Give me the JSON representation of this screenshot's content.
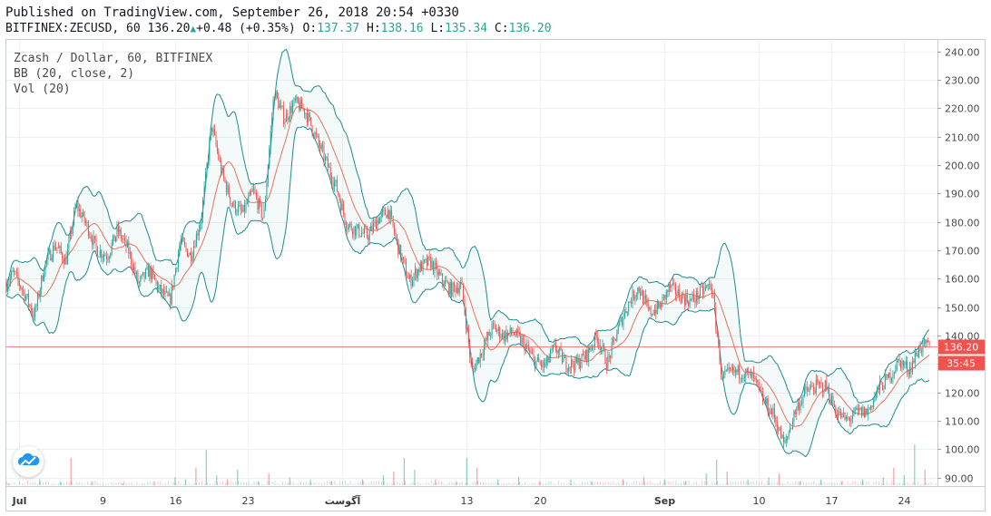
{
  "header": {
    "published": "Published on TradingView.com, September 26, 2018 20:54 +0330",
    "symbol": "BITFINEX:ZECUSD, 60",
    "last": "136.20",
    "change": "+0.48 (+0.35%)",
    "o_label": "O:",
    "o_value": "137.37",
    "h_label": "H:",
    "h_value": "138.16",
    "l_label": "L:",
    "l_value": "135.34",
    "c_label": "C:",
    "c_value": "136.20"
  },
  "legend": {
    "title": "Zcash / Dollar, 60, BITFINEX",
    "bb": "BB (20, close, 2)",
    "vol": "Vol (20)"
  },
  "colors": {
    "up": "#26a69a",
    "down": "#ef5350",
    "band": "#1e8a93",
    "basis": "#e8735d",
    "grid": "#eef0f3",
    "price_line": "#ef5350"
  },
  "icons": {
    "logo": "tradingview-cloud-logo"
  },
  "chart_data": {
    "type": "candlestick",
    "title": "Zcash / Dollar, 60, BITFINEX",
    "indicators": [
      "BB (20, close, 2)",
      "Vol (20)"
    ],
    "y_axis_ticks": [
      "240.00",
      "230.00",
      "220.00",
      "210.00",
      "200.00",
      "190.00",
      "180.00",
      "170.00",
      "160.00",
      "150.00",
      "140.00",
      "130.00",
      "120.00",
      "110.00",
      "100.00",
      "90.00"
    ],
    "ylim": [
      87,
      244
    ],
    "x_axis_ticks": [
      {
        "label": "Jul",
        "day": 0
      },
      {
        "label": "9",
        "day": 8
      },
      {
        "label": "16",
        "day": 15
      },
      {
        "label": "23",
        "day": 22
      },
      {
        "label": "آگوست",
        "day": 31
      },
      {
        "label": "13",
        "day": 43
      },
      {
        "label": "20",
        "day": 50
      },
      {
        "label": "Sep",
        "day": 62
      },
      {
        "label": "10",
        "day": 71
      },
      {
        "label": "17",
        "day": 78
      },
      {
        "label": "24",
        "day": 85
      }
    ],
    "x_range_days": [
      -1.2,
      88.2
    ],
    "last_price": "136.20",
    "last_price_value": 136.2,
    "countdown": "35:45",
    "series": [
      {
        "name": "close",
        "points": [
          [
            -1.2,
            158
          ],
          [
            -0.5,
            162
          ],
          [
            0.5,
            155
          ],
          [
            1.5,
            147
          ],
          [
            2.5,
            165
          ],
          [
            3.5,
            172
          ],
          [
            4.5,
            166
          ],
          [
            5.5,
            186
          ],
          [
            6.5,
            179
          ],
          [
            7.5,
            170
          ],
          [
            8.5,
            168
          ],
          [
            9.5,
            177
          ],
          [
            10.5,
            170
          ],
          [
            11.5,
            158
          ],
          [
            12.5,
            163
          ],
          [
            13.5,
            156
          ],
          [
            14.5,
            152
          ],
          [
            15.5,
            173
          ],
          [
            16.5,
            168
          ],
          [
            17.5,
            181
          ],
          [
            18.5,
            214
          ],
          [
            19.5,
            197
          ],
          [
            20.5,
            186
          ],
          [
            21.5,
            183
          ],
          [
            22.5,
            191
          ],
          [
            23.5,
            181
          ],
          [
            24.5,
            226
          ],
          [
            25.5,
            216
          ],
          [
            26.5,
            222
          ],
          [
            27.5,
            219
          ],
          [
            28.5,
            210
          ],
          [
            29.5,
            201
          ],
          [
            30.5,
            192
          ],
          [
            31.5,
            179
          ],
          [
            32.5,
            177
          ],
          [
            33.5,
            175
          ],
          [
            34.5,
            181
          ],
          [
            35.5,
            184
          ],
          [
            36.5,
            170
          ],
          [
            37.5,
            159
          ],
          [
            38.5,
            164
          ],
          [
            39.5,
            166
          ],
          [
            40.5,
            160
          ],
          [
            41.5,
            156
          ],
          [
            42.5,
            158
          ],
          [
            43.5,
            127
          ],
          [
            44.5,
            135
          ],
          [
            45.5,
            143
          ],
          [
            46.5,
            140
          ],
          [
            47.5,
            141
          ],
          [
            48.5,
            137
          ],
          [
            49.5,
            131
          ],
          [
            50.5,
            129
          ],
          [
            51.5,
            136
          ],
          [
            52.5,
            130
          ],
          [
            53.5,
            130
          ],
          [
            54.5,
            133
          ],
          [
            55.5,
            140
          ],
          [
            56.5,
            130
          ],
          [
            57.5,
            142
          ],
          [
            58.5,
            151
          ],
          [
            59.5,
            157
          ],
          [
            60.5,
            148
          ],
          [
            61.5,
            150
          ],
          [
            62.5,
            157
          ],
          [
            63.5,
            154
          ],
          [
            64.5,
            152
          ],
          [
            65.5,
            155
          ],
          [
            66.5,
            158
          ],
          [
            67.5,
            125
          ],
          [
            68.5,
            127
          ],
          [
            69.5,
            127
          ],
          [
            70.5,
            125
          ],
          [
            71.5,
            117
          ],
          [
            72.5,
            112
          ],
          [
            73.5,
            101
          ],
          [
            74.5,
            113
          ],
          [
            75.5,
            120
          ],
          [
            76.5,
            122
          ],
          [
            77.5,
            122
          ],
          [
            78.5,
            113
          ],
          [
            79.5,
            110
          ],
          [
            80.5,
            113
          ],
          [
            81.5,
            113
          ],
          [
            82.5,
            121
          ],
          [
            83.5,
            125
          ],
          [
            84.5,
            131
          ],
          [
            85.5,
            128
          ],
          [
            86.5,
            136
          ],
          [
            87.5,
            136.2
          ]
        ]
      },
      {
        "name": "volume",
        "points": [
          [
            -1,
            1
          ],
          [
            2,
            3
          ],
          [
            4,
            2
          ],
          [
            5,
            14
          ],
          [
            7,
            2
          ],
          [
            10,
            1
          ],
          [
            13,
            2
          ],
          [
            15,
            4
          ],
          [
            16,
            3
          ],
          [
            17,
            9
          ],
          [
            18,
            18
          ],
          [
            19,
            5
          ],
          [
            20,
            3
          ],
          [
            21,
            8
          ],
          [
            23,
            2
          ],
          [
            24,
            6
          ],
          [
            26,
            4
          ],
          [
            28,
            3
          ],
          [
            30,
            2
          ],
          [
            33,
            3
          ],
          [
            35,
            5
          ],
          [
            36,
            7
          ],
          [
            37,
            14
          ],
          [
            38,
            8
          ],
          [
            40,
            3
          ],
          [
            42,
            2
          ],
          [
            43,
            14
          ],
          [
            44,
            9
          ],
          [
            46,
            3
          ],
          [
            48,
            4
          ],
          [
            50,
            2
          ],
          [
            53,
            3
          ],
          [
            55,
            2
          ],
          [
            58,
            3
          ],
          [
            60,
            4
          ],
          [
            62,
            3
          ],
          [
            64,
            2
          ],
          [
            66,
            6
          ],
          [
            67,
            13
          ],
          [
            68,
            7
          ],
          [
            70,
            3
          ],
          [
            72,
            4
          ],
          [
            73,
            6
          ],
          [
            75,
            2
          ],
          [
            77,
            3
          ],
          [
            79,
            2
          ],
          [
            81,
            3
          ],
          [
            83,
            4
          ],
          [
            84,
            9
          ],
          [
            85,
            5
          ],
          [
            86,
            21
          ],
          [
            87,
            8
          ]
        ]
      }
    ]
  }
}
